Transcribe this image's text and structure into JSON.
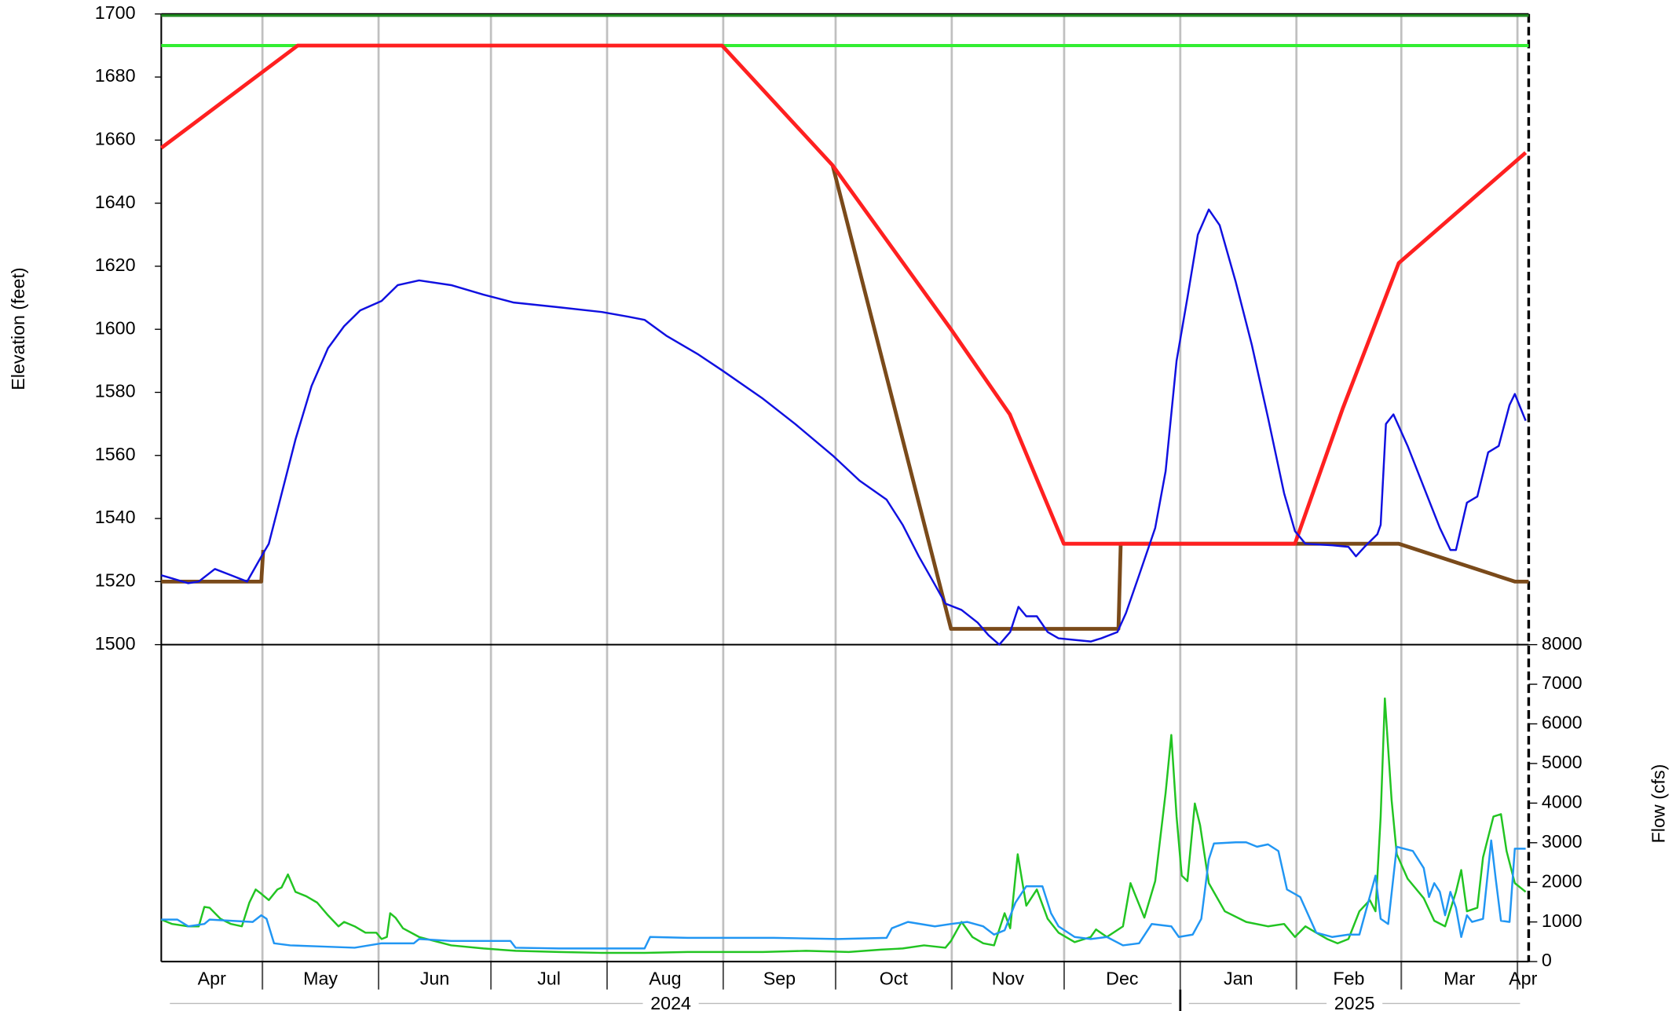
{
  "chart_data": {
    "type": "line",
    "ylabel": "Elevation (feet)",
    "y2label": "Flow (cfs)",
    "xlim": [
      0,
      365
    ],
    "ylim": [
      1500,
      1700
    ],
    "yticks": [
      1500,
      1520,
      1540,
      1560,
      1580,
      1600,
      1620,
      1640,
      1660,
      1680,
      1700
    ],
    "y2lim": [
      0,
      8000
    ],
    "y2ticks": [
      0,
      1000,
      2000,
      3000,
      4000,
      5000,
      6000,
      7000,
      8000
    ],
    "xticks": [
      27,
      58,
      88,
      119,
      150,
      180,
      211,
      241,
      272,
      303,
      331,
      362
    ],
    "categories": [
      "Apr",
      "May",
      "Jun",
      "Jul",
      "Aug",
      "Sep",
      "Oct",
      "Nov",
      "Dec",
      "Jan",
      "Feb",
      "Mar",
      "Apr"
    ],
    "years": [
      "2024",
      "2025"
    ],
    "grid": true,
    "series": [
      {
        "color": "#228b22",
        "x": [
          0,
          365
        ],
        "values": [
          1699.5,
          1699.5
        ]
      },
      {
        "color": "#33ee33",
        "x": [
          0,
          365
        ],
        "values": [
          1690,
          1690
        ]
      },
      {
        "color": "#7a4a1a",
        "x": [
          0,
          26.7,
          27.2,
          100,
          179.2,
          210.8,
          255.5,
          256.1,
          330.3,
          361.3,
          365
        ],
        "values": [
          1520,
          1520,
          1530,
          null,
          1652,
          1505,
          1505,
          1532,
          1532,
          1520,
          1520
        ]
      },
      {
        "color": "#ff2020",
        "x": [
          0,
          36.4,
          149.7,
          179.2,
          210.8,
          226.5,
          240.9,
          302.6,
          315.4,
          330.3,
          364.2
        ],
        "values": [
          1657.5,
          1690,
          1690,
          1652,
          1600,
          1573,
          1532,
          1532,
          1575,
          1621,
          1656
        ]
      },
      {
        "color": "#1010e0",
        "x": [
          0,
          2.9,
          7.2,
          10,
          14.3,
          18.6,
          22.9,
          27.2,
          28.7,
          31.5,
          35.8,
          40.1,
          44.5,
          48.8,
          53.1,
          58.8,
          63.1,
          68.8,
          77.4,
          86,
          94.1,
          106.1,
          117.6,
          124.7,
          129,
          134.8,
          143.4,
          149.7,
          160.6,
          169.2,
          179.2,
          186.4,
          193.6,
          197.9,
          202.2,
          206.5,
          209.3,
          213.6,
          217.9,
          220.8,
          223.7,
          226.6,
          228.8,
          230.9,
          233.7,
          236.6,
          239.5,
          243.8,
          248.1,
          250.9,
          255.2,
          257.5,
          261,
          265.3,
          268.1,
          271,
          273.9,
          276.7,
          279.6,
          282.5,
          286.8,
          291.1,
          295.4,
          299.7,
          302.6,
          305.4,
          312.6,
          316.9,
          318.9,
          321.2,
          324.6,
          325.5,
          326.9,
          328.9,
          332.7,
          337,
          341.3,
          344.1,
          345.6,
          348.5,
          351.3,
          354.2,
          357,
          359.9,
          361.3,
          364.2
        ],
        "values": [
          1522,
          1521,
          1519.5,
          1520,
          1524,
          1522,
          1520,
          1529,
          1532,
          1545,
          1565,
          1582,
          1594,
          1601,
          1606,
          1609,
          1614,
          1615.5,
          1614,
          1611,
          1608.5,
          1607,
          1605.5,
          1604,
          1603,
          1598,
          1592,
          1587,
          1578,
          1570,
          1560,
          1552,
          1546,
          1538,
          1528,
          1519,
          1513,
          1511,
          1507,
          1503,
          1500,
          1504,
          1512,
          1509,
          1509,
          1504,
          1502,
          1501.5,
          1501,
          1502,
          1504,
          1510,
          1522,
          1537,
          1555,
          1590,
          1610,
          1630,
          1638,
          1633,
          1615,
          1595,
          1572,
          1548,
          1536,
          1532,
          1531.5,
          1531,
          1528,
          1531,
          1535,
          1538,
          1570,
          1573,
          1563,
          1550,
          1537,
          1530,
          1530,
          1545,
          1547,
          1561,
          1563,
          1576,
          1579.5,
          1571
        ]
      },
      {
        "color": "#22c422",
        "axis": "y2",
        "x": [
          0,
          2.9,
          7.2,
          10,
          11.5,
          12.9,
          15.8,
          18.6,
          21.5,
          23.5,
          25.2,
          26.7,
          28.7,
          31,
          32.1,
          33.8,
          35.8,
          38.7,
          41.6,
          44.5,
          47.3,
          48.8,
          51.6,
          54.5,
          57.4,
          58.8,
          60.2,
          61.1,
          62.5,
          64.5,
          68.8,
          77.4,
          86,
          94.6,
          106.1,
          117.6,
          129,
          140.5,
          149.7,
          160.6,
          172.1,
          183.5,
          192.1,
          197.9,
          203.6,
          209.3,
          210.8,
          213.6,
          216.5,
          219.4,
          222.3,
          225.1,
          226.6,
          228.6,
          230.9,
          233.7,
          236.6,
          239.5,
          243.8,
          248.1,
          249.5,
          252.4,
          256.7,
          258.7,
          261,
          262.4,
          265.3,
          268.1,
          269.6,
          271,
          272.4,
          273.9,
          275.9,
          277.3,
          279.6,
          283.9,
          289.6,
          295.4,
          299.7,
          302.6,
          305.4,
          308.3,
          311.2,
          314,
          316.9,
          319.8,
          322.6,
          324.1,
          325.5,
          326.6,
          328.4,
          329.8,
          332.7,
          337,
          339.8,
          342.7,
          345.6,
          347,
          348.5,
          351.3,
          352.8,
          355.6,
          357.6,
          359.1,
          361.3,
          364.2
        ],
        "values": [
          1060,
          950,
          890,
          890,
          1380,
          1360,
          1080,
          950,
          890,
          1490,
          1820,
          1710,
          1550,
          1820,
          1870,
          2200,
          1760,
          1650,
          1490,
          1170,
          890,
          1000,
          890,
          730,
          730,
          570,
          620,
          1220,
          1110,
          840,
          620,
          410,
          330,
          270,
          240,
          220,
          220,
          240,
          240,
          240,
          270,
          240,
          300,
          330,
          410,
          350,
          520,
          1000,
          620,
          460,
          410,
          1220,
          840,
          2710,
          1410,
          1820,
          1080,
          730,
          490,
          620,
          810,
          620,
          890,
          1980,
          1440,
          1110,
          2030,
          4260,
          5720,
          3660,
          2170,
          2030,
          3990,
          3440,
          1980,
          1270,
          1000,
          890,
          950,
          620,
          890,
          730,
          570,
          460,
          570,
          1270,
          1550,
          1270,
          3660,
          6640,
          4070,
          2710,
          2090,
          1600,
          1030,
          890,
          1760,
          2310,
          1270,
          1360,
          2630,
          3660,
          3720,
          2790,
          1980,
          1760
        ]
      },
      {
        "color": "#2196f3",
        "axis": "y2",
        "x": [
          0,
          4.3,
          7.2,
          11.5,
          12.9,
          18.6,
          24.4,
          26.7,
          28.1,
          30.1,
          34.4,
          43,
          51.6,
          58.8,
          67.4,
          68.8,
          77.4,
          93.2,
          94.6,
          106.1,
          129,
          130.5,
          140.5,
          149.7,
          163.5,
          180.7,
          193.6,
          195,
          199.3,
          206.5,
          210.8,
          215.1,
          219.4,
          222.3,
          225.1,
          228,
          230.9,
          235.2,
          237.5,
          239.5,
          243.8,
          248.1,
          252.4,
          256.7,
          261,
          264.4,
          269.6,
          271.6,
          275.3,
          277.6,
          279.6,
          281,
          286.8,
          289.6,
          292.5,
          295.4,
          298.2,
          300.5,
          304,
          308.3,
          312.6,
          316.9,
          319.8,
          324.1,
          325.5,
          327.5,
          329.8,
          334.1,
          337,
          338.4,
          339.8,
          341.3,
          342.7,
          344.1,
          345.6,
          347,
          348.5,
          349.9,
          352.8,
          355,
          356.2,
          357.6,
          359.9,
          361.3,
          364.2
        ],
        "values": [
          1060,
          1060,
          890,
          950,
          1060,
          1030,
          1000,
          1170,
          1080,
          460,
          410,
          380,
          350,
          460,
          460,
          570,
          520,
          520,
          350,
          330,
          330,
          620,
          600,
          600,
          600,
          570,
          600,
          840,
          1000,
          890,
          950,
          1000,
          890,
          680,
          790,
          1490,
          1900,
          1900,
          1220,
          890,
          620,
          570,
          620,
          410,
          460,
          950,
          890,
          620,
          680,
          1080,
          2580,
          2980,
          3010,
          3010,
          2900,
          2960,
          2790,
          1820,
          1630,
          730,
          620,
          680,
          680,
          2170,
          1080,
          950,
          2900,
          2790,
          2360,
          1630,
          1980,
          1760,
          1170,
          1760,
          1360,
          620,
          1170,
          1000,
          1080,
          3060,
          2090,
          1030,
          1000,
          2850,
          2850
        ]
      }
    ]
  }
}
